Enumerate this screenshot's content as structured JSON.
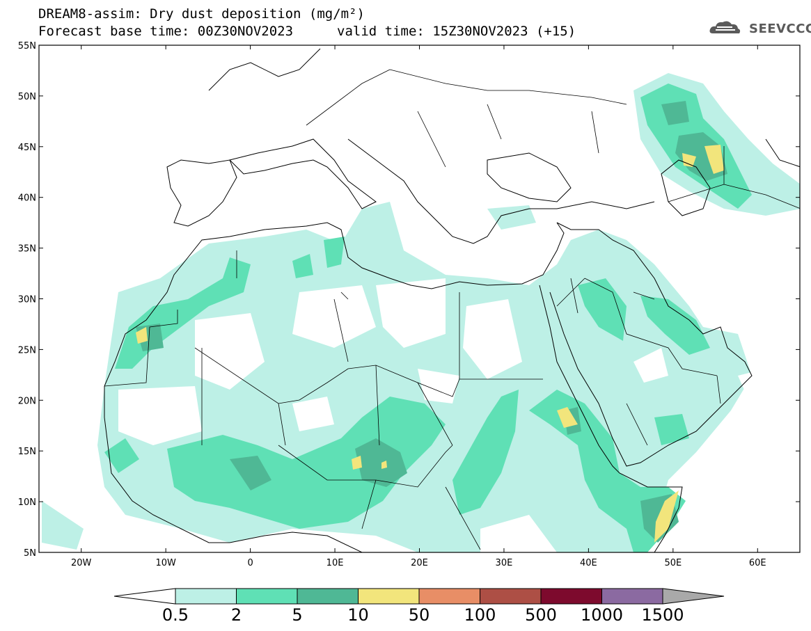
{
  "header": {
    "title_line1": "DREAM8-assim: Dry dust deposition (mg/m²)",
    "title_line2": "Forecast base time: 00Z30NOV2023",
    "valid_time": "valid time: 15Z30NOV2023 (+15)"
  },
  "logo": {
    "text": "SEEVCCC",
    "icon": "cloud-icon"
  },
  "map": {
    "lon_range": [
      -25,
      65
    ],
    "lat_range": [
      5,
      55
    ],
    "lat_ticks": [
      {
        "value": 55,
        "label": "55N"
      },
      {
        "value": 50,
        "label": "50N"
      },
      {
        "value": 45,
        "label": "45N"
      },
      {
        "value": 40,
        "label": "40N"
      },
      {
        "value": 35,
        "label": "35N"
      },
      {
        "value": 30,
        "label": "30N"
      },
      {
        "value": 25,
        "label": "25N"
      },
      {
        "value": 20,
        "label": "20N"
      },
      {
        "value": 15,
        "label": "15N"
      },
      {
        "value": 10,
        "label": "10N"
      },
      {
        "value": 5,
        "label": "5N"
      }
    ],
    "lon_ticks": [
      {
        "value": -20,
        "label": "20W"
      },
      {
        "value": -10,
        "label": "10W"
      },
      {
        "value": 0,
        "label": "0"
      },
      {
        "value": 10,
        "label": "10E"
      },
      {
        "value": 20,
        "label": "20E"
      },
      {
        "value": 30,
        "label": "30E"
      },
      {
        "value": 40,
        "label": "40E"
      },
      {
        "value": 50,
        "label": "50E"
      },
      {
        "value": 60,
        "label": "60E"
      }
    ]
  },
  "colorbar": {
    "labels": [
      "0.5",
      "2",
      "5",
      "10",
      "50",
      "100",
      "500",
      "1000",
      "1500"
    ],
    "colors": [
      "#bdf0e6",
      "#5fe0b5",
      "#4fb895",
      "#f2e57c",
      "#e88e66",
      "#ad4f45",
      "#7d0a2d",
      "#8b6aa1"
    ],
    "low_end_color": "#ffffff",
    "high_end_color": "#a9a9a9"
  }
}
